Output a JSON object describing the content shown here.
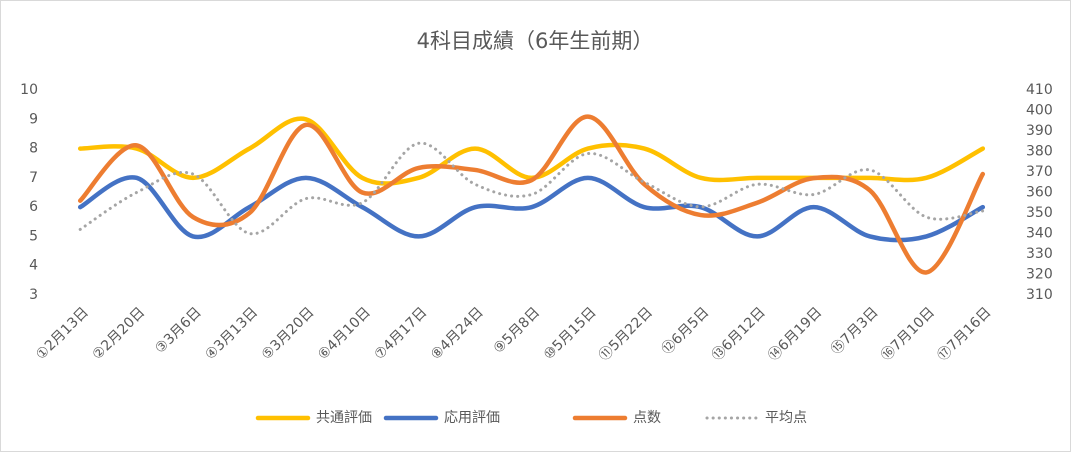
{
  "chart_data": {
    "type": "line",
    "title": "4科目成績（6年生前期）",
    "categories": [
      "①2月13日",
      "②2月20日",
      "③3月6日",
      "④3月13日",
      "⑤3月20日",
      "⑥4月10日",
      "⑦4月17日",
      "⑧4月24日",
      "⑨5月8日",
      "⑩5月15日",
      "⑪5月22日",
      "⑫6月5日",
      "⑬6月12日",
      "⑭6月19日",
      "⑮7月3日",
      "⑯7月10日",
      "⑰7月16日"
    ],
    "series": [
      {
        "name": "共通評価",
        "color": "#FFC000",
        "line_style": "solid",
        "values": [
          8,
          8,
          7,
          8,
          9,
          7,
          7,
          8,
          7,
          8,
          8,
          7,
          7,
          7,
          7,
          7,
          8
        ]
      },
      {
        "name": "応用評価",
        "color": "#4472C4",
        "line_style": "solid",
        "values": [
          6,
          7,
          5,
          6,
          7,
          6,
          5,
          6,
          6,
          7,
          6,
          6,
          5,
          6,
          5,
          5,
          6
        ]
      },
      {
        "name": "点数",
        "color": "#ED7D31",
        "line_style": "solid",
        "axis": "y2",
        "values": [
          356,
          383,
          348,
          350,
          393,
          360,
          372,
          371,
          366,
          397,
          364,
          349,
          355,
          367,
          361,
          321,
          369
        ]
      },
      {
        "name": "平均点",
        "color": "#A5A5A5",
        "line_style": "dotted",
        "axis": "y2",
        "values": [
          342,
          360,
          369,
          340,
          357,
          355,
          384,
          364,
          359,
          379,
          365,
          353,
          364,
          359,
          371,
          348,
          351
        ]
      }
    ],
    "ylim": [
      3,
      10
    ],
    "yticks": [
      3,
      4,
      5,
      6,
      7,
      8,
      9,
      10
    ],
    "y2lim": [
      310,
      410
    ],
    "y2ticks": [
      310,
      320,
      330,
      340,
      350,
      360,
      370,
      380,
      390,
      400,
      410
    ],
    "smooth": true,
    "grid": false,
    "legend": "bottom"
  }
}
